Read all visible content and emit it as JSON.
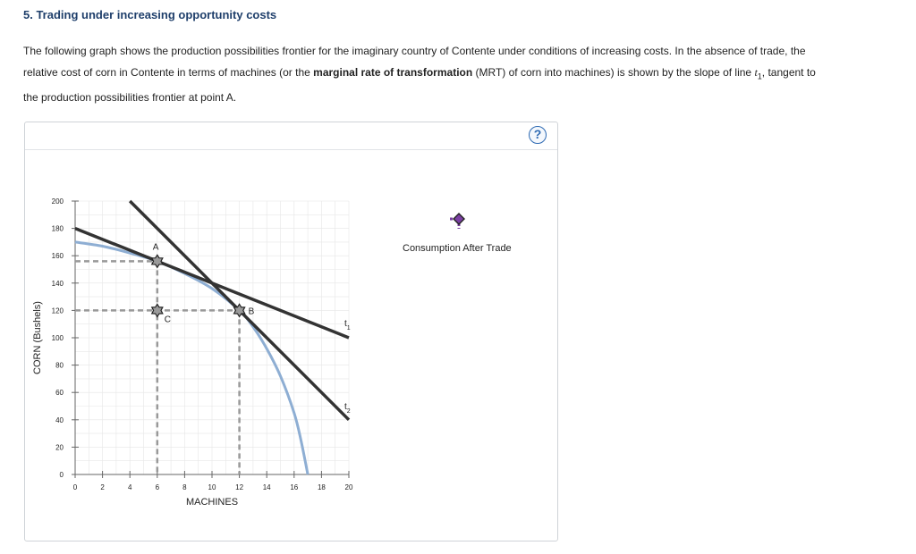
{
  "question": {
    "title": "5. Trading under increasing opportunity costs",
    "p1": "The following graph shows the production possibilities frontier for the imaginary country of Contente under conditions of increasing costs. In the absence of trade, the relative cost of corn in Contente in terms of machines (or the ",
    "bold": "marginal rate of transformation",
    "p2": " (MRT) of corn into machines) is shown by the slope of line ",
    "line_var": "t",
    "line_sub": "1",
    "p3": ", tangent to the production possibilities frontier at point A."
  },
  "help": {
    "label": "?"
  },
  "legend": {
    "consumption_label": "Consumption After Trade",
    "marker_color": "#7b3fa3"
  },
  "colors": {
    "ppf": "#8eaed3",
    "line": "#333333",
    "dash": "#999999",
    "grid": "#e6e6e6"
  },
  "chart_data": {
    "type": "line",
    "xlabel": "MACHINES",
    "ylabel": "CORN (Bushels)",
    "xlim": [
      0,
      20
    ],
    "ylim": [
      0,
      200
    ],
    "xticks": [
      "0",
      "2",
      "4",
      "6",
      "8",
      "10",
      "12",
      "14",
      "16",
      "18",
      "20"
    ],
    "yticks": [
      "0",
      "20",
      "40",
      "60",
      "80",
      "100",
      "120",
      "140",
      "160",
      "180",
      "200"
    ],
    "ppf": [
      [
        0,
        170
      ],
      [
        2,
        167
      ],
      [
        4,
        162
      ],
      [
        6,
        156
      ],
      [
        8,
        147
      ],
      [
        10,
        136
      ],
      [
        12,
        120
      ],
      [
        13,
        108
      ],
      [
        14,
        92
      ],
      [
        15,
        72
      ],
      [
        16,
        45
      ],
      [
        16.5,
        25
      ],
      [
        17,
        0
      ]
    ],
    "t1": [
      [
        0,
        180
      ],
      [
        20,
        100
      ]
    ],
    "t2": [
      [
        4,
        200
      ],
      [
        20,
        40
      ]
    ],
    "points": [
      {
        "label": "A",
        "x": 6,
        "y": 156
      },
      {
        "label": "C",
        "x": 6,
        "y": 120
      },
      {
        "label": "B",
        "x": 12,
        "y": 120
      }
    ],
    "line_labels": [
      {
        "label": "t",
        "sub": "1",
        "x": 20,
        "y": 100
      },
      {
        "label": "t",
        "sub": "2",
        "x": 20,
        "y": 40
      }
    ]
  }
}
